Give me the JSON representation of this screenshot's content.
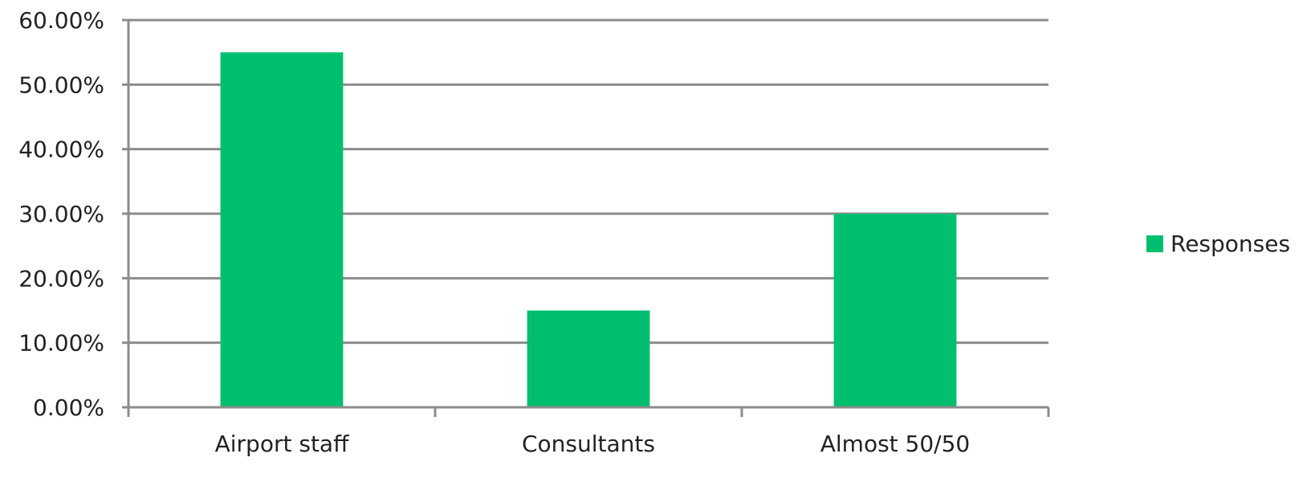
{
  "chart_data": {
    "type": "bar",
    "categories": [
      "Airport staff",
      "Consultants",
      "Almost 50/50"
    ],
    "series": [
      {
        "name": "Responses",
        "values": [
          0.55,
          0.15,
          0.3
        ]
      }
    ],
    "ylim": [
      0,
      0.6
    ],
    "y_ticks": [
      0,
      0.1,
      0.2,
      0.3,
      0.4,
      0.5,
      0.6
    ],
    "y_tick_labels": [
      "0.00%",
      "10.00%",
      "20.00%",
      "30.00%",
      "40.00%",
      "50.00%",
      "60.00%"
    ],
    "grid": true,
    "legend_position": "right",
    "colors": {
      "bar": "#00BF6F",
      "gridline": "#8C8C8C",
      "axis": "#8C8C8C",
      "text": "#222222"
    }
  }
}
